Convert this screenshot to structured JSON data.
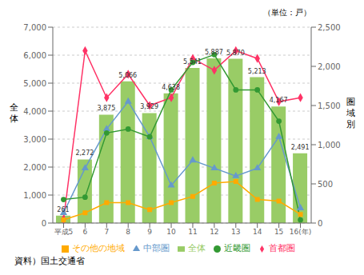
{
  "chart_data": {
    "type": "bar",
    "categories": [
      "平成5",
      "6",
      "7",
      "8",
      "9",
      "10",
      "11",
      "12",
      "13",
      "14",
      "15",
      "16(年)"
    ],
    "ylabel": "全\n体",
    "y2label": "圏\n域\n別",
    "annotations": [
      "（単位：戸）",
      "資料）国土交通省"
    ],
    "ylim": [
      0,
      7000
    ],
    "yticks": [
      0,
      {
        "value": 1000,
        "label": "1,000"
      },
      {
        "value": 2000,
        "label": "2,000"
      },
      {
        "value": 3000,
        "label": "3,000"
      },
      {
        "value": 4000,
        "label": "4,000"
      },
      {
        "value": 5000,
        "label": "5,000"
      },
      {
        "value": 6000,
        "label": "6,000"
      },
      {
        "value": 7000,
        "label": "7,000"
      }
    ],
    "y2lim": [
      0,
      2500
    ],
    "y2ticks": [
      0,
      500,
      {
        "value": 1000,
        "label": "1,000"
      },
      {
        "value": 1500,
        "label": "1,500"
      },
      {
        "value": 2000,
        "label": "2,000"
      },
      {
        "value": 2500,
        "label": "2,500"
      }
    ],
    "grid": true,
    "legend": "bottom",
    "series": [
      {
        "name": "全体",
        "type": "bar",
        "color": "#99cc66",
        "data_labels": true,
        "values": [
          261,
          2272,
          3875,
          5066,
          3929,
          4638,
          5541,
          5887,
          5870,
          5213,
          4167,
          2491
        ],
        "value_labels": [
          "261",
          "2,272",
          "3,875",
          "5,066",
          "3,929",
          "4,638",
          "5,541",
          "5,887",
          "5,870",
          "5,213",
          "4,167",
          "2,491"
        ]
      },
      {
        "name": "首都圏",
        "type": "line",
        "axis": "y2",
        "color": "#ff3366",
        "marker": "diamond",
        "values": [
          50,
          2200,
          1600,
          1900,
          1500,
          1600,
          2100,
          1950,
          2200,
          2100,
          1550,
          1600
        ]
      },
      {
        "name": "中部圏",
        "type": "line",
        "axis": "y2",
        "color": "#6699cc",
        "marker": "triangle",
        "values": [
          130,
          700,
          1200,
          1550,
          1100,
          480,
          800,
          700,
          600,
          700,
          1100,
          190
        ]
      },
      {
        "name": "近畿圏",
        "type": "line",
        "axis": "y2",
        "color": "#339933",
        "marker": "circle",
        "values": [
          300,
          330,
          1150,
          1200,
          1100,
          1700,
          2050,
          2150,
          1700,
          1700,
          1300,
          40
        ]
      },
      {
        "name": "その他の地域",
        "type": "line",
        "axis": "y2",
        "color": "#ffaa00",
        "marker": "square",
        "values": [
          40,
          130,
          260,
          260,
          170,
          260,
          340,
          510,
          530,
          300,
          280,
          110
        ]
      }
    ]
  }
}
